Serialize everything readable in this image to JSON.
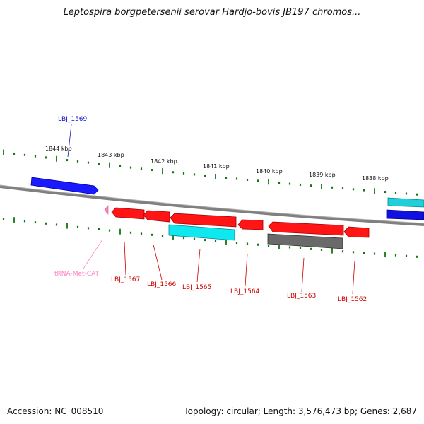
{
  "title": "Leptospira borgpetersenii serovar Hardjo-bovis JB197 chromos...",
  "footer": {
    "accession": "Accession: NC_008510",
    "summary": "Topology: circular; Length: 3,576,473 bp; Genes: 2,687"
  },
  "colors": {
    "forward_gene": "#1010e0",
    "reverse_gene": "#ff1010",
    "cyan_gene": "#10e0e8",
    "gray_gene": "#606060",
    "trna": "#ff80c0",
    "backbone": "#808080",
    "ticks": "#117711"
  },
  "scale_labels": [
    "1844 kbp",
    "1843 kbp",
    "1842 kbp",
    "1841 kbp",
    "1840 kbp",
    "1839 kbp",
    "1838 kbp"
  ],
  "features": [
    {
      "label": "LBJ_1569",
      "color": "#1010c0",
      "track": "upper",
      "strand": "+"
    },
    {
      "label": "tRNA-Met-CAT",
      "color": "#ff80c0",
      "track": "lower",
      "strand": "-"
    },
    {
      "label": "LBJ_1567",
      "color": "#cc0000",
      "track": "lower",
      "strand": "-"
    },
    {
      "label": "LBJ_1566",
      "color": "#cc0000",
      "track": "lower",
      "strand": "-"
    },
    {
      "label": "LBJ_1565",
      "color": "#cc0000",
      "track": "lower",
      "strand": "-"
    },
    {
      "label": "LBJ_1564",
      "color": "#cc0000",
      "track": "lower",
      "strand": "-"
    },
    {
      "label": "LBJ_1563",
      "color": "#cc0000",
      "track": "lower",
      "strand": "-"
    },
    {
      "label": "LBJ_1562",
      "color": "#cc0000",
      "track": "lower",
      "strand": "-"
    }
  ]
}
